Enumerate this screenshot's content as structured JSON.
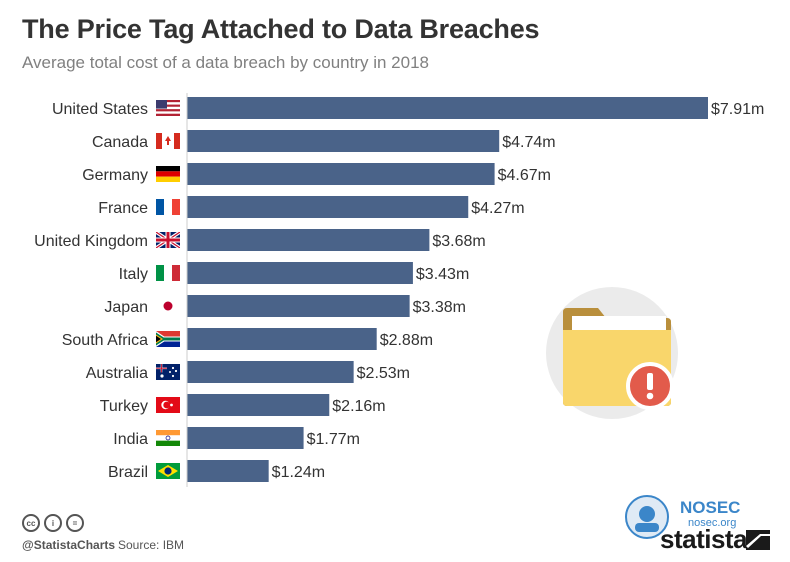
{
  "title": "The Price Tag Attached to Data Breaches",
  "subtitle": "Average total cost of a data breach by country in 2018",
  "colors": {
    "bar": "#4a6389",
    "accent_red": "#e25b4b",
    "folder_yellow": "#f9d66b",
    "folder_back": "#b98f3c",
    "circle_bg": "#ebebeb",
    "nosec_blue": "#3b86c9"
  },
  "chart_data": {
    "type": "bar",
    "orientation": "horizontal",
    "title": "The Price Tag Attached to Data Breaches",
    "subtitle": "Average total cost of a data breach by country in 2018",
    "categories": [
      "United States",
      "Canada",
      "Germany",
      "France",
      "United Kingdom",
      "Italy",
      "Japan",
      "South Africa",
      "Australia",
      "Turkey",
      "India",
      "Brazil"
    ],
    "values": [
      7.91,
      4.74,
      4.67,
      4.27,
      3.68,
      3.43,
      3.38,
      2.88,
      2.53,
      2.16,
      1.77,
      1.24
    ],
    "value_labels": [
      "$7.91m",
      "$4.74m",
      "$4.67m",
      "$4.27m",
      "$3.68m",
      "$3.43m",
      "$3.38m",
      "$2.88m",
      "$2.53m",
      "$2.16m",
      "$1.77m",
      "$1.24m"
    ],
    "flags": [
      "us-flag-icon",
      "canada-flag-icon",
      "germany-flag-icon",
      "france-flag-icon",
      "uk-flag-icon",
      "italy-flag-icon",
      "japan-flag-icon",
      "south-africa-flag-icon",
      "australia-flag-icon",
      "turkey-flag-icon",
      "india-flag-icon",
      "brazil-flag-icon"
    ],
    "xlim": [
      0,
      7.91
    ],
    "grid": false,
    "legend": "none"
  },
  "footer": {
    "cc_icons": [
      "cc",
      "i",
      "="
    ],
    "handle": "@StatistaCharts",
    "source": "Source: IBM",
    "nosec_name": "NOSEC",
    "nosec_url": "nosec.org",
    "brand": "statista"
  }
}
